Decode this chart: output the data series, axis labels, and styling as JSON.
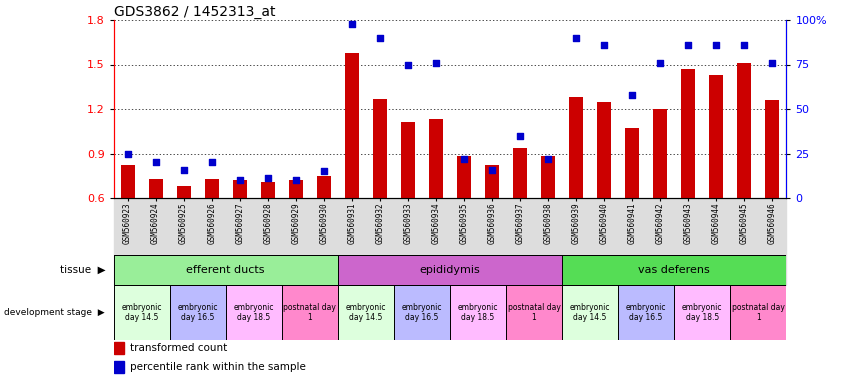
{
  "title": "GDS3862 / 1452313_at",
  "samples": [
    "GSM560923",
    "GSM560924",
    "GSM560925",
    "GSM560926",
    "GSM560927",
    "GSM560928",
    "GSM560929",
    "GSM560930",
    "GSM560931",
    "GSM560932",
    "GSM560933",
    "GSM560934",
    "GSM560935",
    "GSM560936",
    "GSM560937",
    "GSM560938",
    "GSM560939",
    "GSM560940",
    "GSM560941",
    "GSM560942",
    "GSM560943",
    "GSM560944",
    "GSM560945",
    "GSM560946"
  ],
  "transformed_count": [
    0.82,
    0.73,
    0.68,
    0.73,
    0.72,
    0.71,
    0.72,
    0.75,
    1.58,
    1.27,
    1.11,
    1.13,
    0.88,
    0.82,
    0.94,
    0.88,
    1.28,
    1.25,
    1.07,
    1.2,
    1.47,
    1.43,
    1.51,
    1.26
  ],
  "percentile_rank": [
    25,
    20,
    16,
    20,
    10,
    11,
    10,
    15,
    98,
    90,
    75,
    76,
    22,
    16,
    35,
    22,
    90,
    86,
    58,
    76,
    86,
    86,
    86,
    76
  ],
  "ylim": [
    0.6,
    1.8
  ],
  "yticks_left": [
    0.6,
    0.9,
    1.2,
    1.5,
    1.8
  ],
  "yticks_right": [
    0,
    25,
    50,
    75,
    100
  ],
  "bar_color": "#cc0000",
  "dot_color": "#0000cc",
  "bar_width": 0.5,
  "tissue_groups": [
    {
      "label": "efferent ducts",
      "start": 0,
      "end": 8,
      "color": "#99ee99"
    },
    {
      "label": "epididymis",
      "start": 8,
      "end": 16,
      "color": "#cc66cc"
    },
    {
      "label": "vas deferens",
      "start": 16,
      "end": 24,
      "color": "#55dd55"
    }
  ],
  "dev_stage_groups": [
    {
      "label": "embryonic\nday 14.5",
      "start": 0,
      "end": 2,
      "color": "#ddffdd"
    },
    {
      "label": "embryonic\nday 16.5",
      "start": 2,
      "end": 4,
      "color": "#bbbbff"
    },
    {
      "label": "embryonic\nday 18.5",
      "start": 4,
      "end": 6,
      "color": "#ffbbff"
    },
    {
      "label": "postnatal day\n1",
      "start": 6,
      "end": 8,
      "color": "#ff88cc"
    },
    {
      "label": "embryonic\nday 14.5",
      "start": 8,
      "end": 10,
      "color": "#ddffdd"
    },
    {
      "label": "embryonic\nday 16.5",
      "start": 10,
      "end": 12,
      "color": "#bbbbff"
    },
    {
      "label": "embryonic\nday 18.5",
      "start": 12,
      "end": 14,
      "color": "#ffbbff"
    },
    {
      "label": "postnatal day\n1",
      "start": 14,
      "end": 16,
      "color": "#ff88cc"
    },
    {
      "label": "embryonic\nday 14.5",
      "start": 16,
      "end": 18,
      "color": "#ddffdd"
    },
    {
      "label": "embryonic\nday 16.5",
      "start": 18,
      "end": 20,
      "color": "#bbbbff"
    },
    {
      "label": "embryonic\nday 18.5",
      "start": 20,
      "end": 22,
      "color": "#ffbbff"
    },
    {
      "label": "postnatal day\n1",
      "start": 22,
      "end": 24,
      "color": "#ff88cc"
    }
  ],
  "legend_bar_label": "transformed count",
  "legend_dot_label": "percentile rank within the sample",
  "grid_color": "#000000",
  "background_color": "#ffffff",
  "tick_label_bg": "#cccccc"
}
